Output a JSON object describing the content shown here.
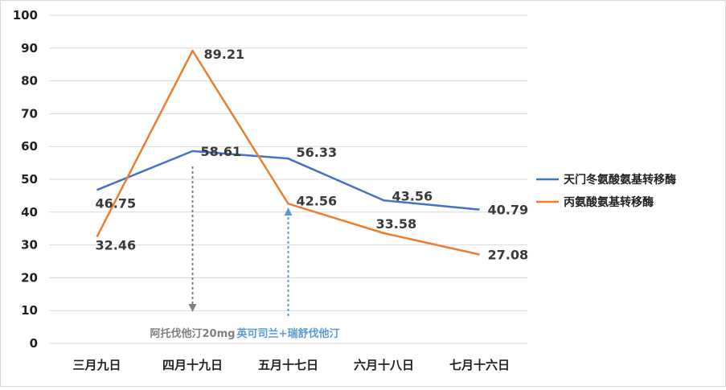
{
  "chart_data": {
    "type": "line",
    "categories": [
      "三月九日",
      "四月十九日",
      "五月十七日",
      "六月十八日",
      "七月十六日"
    ],
    "series": [
      {
        "name": "天门冬氨酸氨基转移酶",
        "color": "#4472c4",
        "values": [
          46.75,
          58.61,
          56.33,
          43.56,
          40.79
        ]
      },
      {
        "name": "丙氨酸氨基转移酶",
        "color": "#ed7d31",
        "values": [
          32.46,
          89.21,
          42.56,
          33.58,
          27.08
        ]
      }
    ],
    "value_labels": [
      [
        "46.75",
        "58.61",
        "56.33",
        "43.56",
        "40.79"
      ],
      [
        "32.46",
        "89.21",
        "42.56",
        "33.58",
        "27.08"
      ]
    ],
    "y_ticks": [
      "0",
      "10",
      "20",
      "30",
      "40",
      "50",
      "60",
      "70",
      "80",
      "90",
      "100"
    ],
    "ylim": [
      0,
      100
    ],
    "y_step": 10,
    "grid": true,
    "legend_position": "right",
    "annotations": [
      {
        "text": "阿托伐他汀20mg",
        "category": "四月十九日",
        "arrow": "down",
        "color": "#808080"
      },
      {
        "text": "英可司兰+瑞舒伐他汀",
        "category": "五月十七日",
        "arrow": "up",
        "color": "#5b9bd5"
      }
    ]
  }
}
